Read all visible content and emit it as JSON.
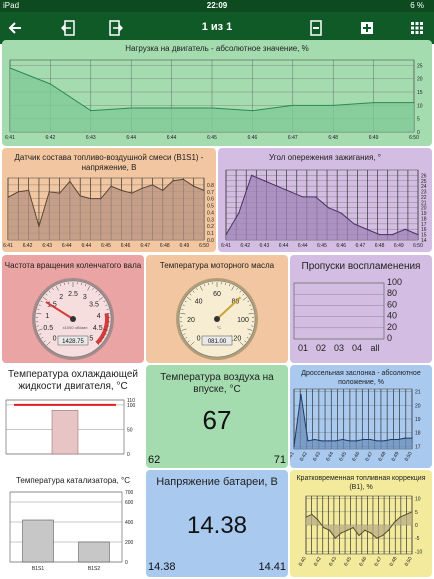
{
  "status": {
    "device": "iPad",
    "time": "22:09",
    "battery": "6 %"
  },
  "toolbar": {
    "page_label": "1 из 1"
  },
  "colors": {
    "green": "#a4dcb0",
    "orange": "#f2c6a0",
    "purple": "#d3bde2",
    "red": "#eba4a4",
    "blue": "#a9c9ef",
    "yellow": "#f4ea9c"
  },
  "panels": {
    "engine_load": {
      "title": "Нагрузка на двигатель - абсолютное значение, %",
      "chart_data": {
        "type": "area",
        "x": [
          "6:41",
          "6:42",
          "6:43",
          "6:44",
          "6:44",
          "6:45",
          "6:46",
          "6:47",
          "6:48",
          "6:49",
          "6:50"
        ],
        "values": [
          24,
          18,
          8,
          9,
          9,
          9,
          8,
          10,
          10,
          11,
          11
        ],
        "y_ticks": [
          0,
          5,
          10,
          15,
          20,
          25
        ],
        "ylim": [
          0,
          27
        ]
      }
    },
    "o2_sensor": {
      "title": "Датчик состава топливо-воздушной смеси (B1S1) - напряжение, В",
      "chart_data": {
        "type": "area",
        "x_ticks": [
          "6:41",
          "6:42",
          "6:43",
          "6:44",
          "6:44",
          "6:45",
          "6:46",
          "6:47",
          "6:48",
          "6:49",
          "6:50"
        ],
        "values": [
          0.62,
          0.7,
          0.72,
          0.2,
          0.7,
          0.68,
          0.85,
          0.64,
          0.6,
          0.6,
          0.78,
          0.72,
          0.68,
          0.75,
          0.8,
          0.72,
          0.86,
          0.88,
          0.78,
          0.72
        ],
        "y_ticks": [
          "0.0",
          "0.1",
          "0.2",
          "0.3",
          "0.4",
          "0.5",
          "0.6",
          "0.7",
          "0.8"
        ],
        "ylim": [
          0,
          0.9
        ]
      }
    },
    "ignition": {
      "title": "Угол опережения зажигания, °",
      "chart_data": {
        "type": "area",
        "x_ticks": [
          "6:41",
          "6:42",
          "6:43",
          "6:44",
          "6:44",
          "6:45",
          "6:46",
          "6:47",
          "6:48",
          "6:49",
          "6:50"
        ],
        "values": [
          15,
          19,
          26,
          25,
          24,
          23,
          22,
          22,
          20,
          19,
          17,
          16,
          15,
          15,
          16,
          15
        ],
        "y_ticks": [
          14,
          15,
          16,
          17,
          18,
          19,
          20,
          21,
          22,
          23,
          24,
          25,
          26
        ],
        "ylim": [
          14,
          27
        ]
      }
    },
    "rpm": {
      "title": "Частота вращения коленчатого вала",
      "ticks": [
        "0",
        "0.5",
        "1",
        "1.5",
        "2",
        "2.5",
        "3",
        "3.5",
        "4",
        "4.5",
        "5"
      ],
      "unit": "x1000 об/мин",
      "value": 1.43,
      "readout": "1428.75"
    },
    "oil_temp": {
      "title": "Температура моторного масла",
      "ticks": [
        "0",
        "20",
        "40",
        "60",
        "80",
        "100",
        "120"
      ],
      "unit": "°C",
      "value": 81,
      "readout": "081.00"
    },
    "misfire": {
      "title": "Пропуски воспламенения",
      "chart_data": {
        "type": "bar",
        "categories": [
          "01",
          "02",
          "03",
          "04",
          "all"
        ],
        "values": [
          0,
          0,
          0,
          0,
          0
        ],
        "y_ticks": [
          0,
          20,
          40,
          60,
          80,
          100
        ],
        "ylim": [
          0,
          100
        ]
      }
    },
    "coolant": {
      "title": "Температура охлаждающей жидкости двигателя, °C",
      "chart_data": {
        "type": "bar",
        "values": [
          89
        ],
        "y_ticks": [
          0,
          50,
          100,
          110
        ],
        "ylim": [
          0,
          110
        ],
        "threshold": 100
      }
    },
    "intake_air": {
      "title": "Температура воздуха на впуске, °C",
      "value": "67",
      "min": "62",
      "max": "71"
    },
    "throttle": {
      "title": "Дроссельная заслонка - абсолютное положение, %",
      "chart_data": {
        "type": "area",
        "x_ticks": [
          "6:41",
          "6:42",
          "6:43",
          "6:44",
          "6:45",
          "6:46",
          "6:47",
          "6:48",
          "6:49",
          "6:50"
        ],
        "values": [
          17,
          20.8,
          17.4,
          17.5,
          17.4,
          17.4,
          17.4,
          17.5,
          17.4,
          17.4,
          17.5,
          17.5,
          17.4,
          17.4,
          17.5,
          17.5,
          17.6,
          17.6
        ],
        "y_ticks": [
          17,
          18,
          19,
          20,
          21
        ],
        "ylim": [
          16.8,
          21.2
        ]
      }
    },
    "catalyst": {
      "title": "Температура катализатора, °C",
      "chart_data": {
        "type": "bar",
        "categories": [
          "B1S1",
          "B1S2"
        ],
        "values": [
          420,
          200
        ],
        "y_ticks": [
          0,
          200,
          400,
          600,
          700
        ],
        "ylim": [
          0,
          700
        ]
      }
    },
    "battery": {
      "title": "Напряжение батареи, В",
      "value": "14.38",
      "min": "14.38",
      "max": "14.41"
    },
    "stft": {
      "title": "Кратковременная топливная коррекция (B1), %",
      "chart_data": {
        "type": "area",
        "x_ticks": [
          "6:40",
          "6:42",
          "6:43",
          "6:45",
          "6:46",
          "6:47",
          "6:48",
          "6:50"
        ],
        "values": [
          3,
          4,
          2,
          -1,
          -2,
          -5,
          -3,
          -2,
          -1,
          -4,
          -2,
          -3,
          -5,
          -4,
          -2,
          1,
          3,
          4,
          5
        ],
        "y_ticks": [
          -10,
          -5,
          0,
          5,
          10
        ],
        "ylim": [
          -11,
          11
        ]
      }
    }
  }
}
